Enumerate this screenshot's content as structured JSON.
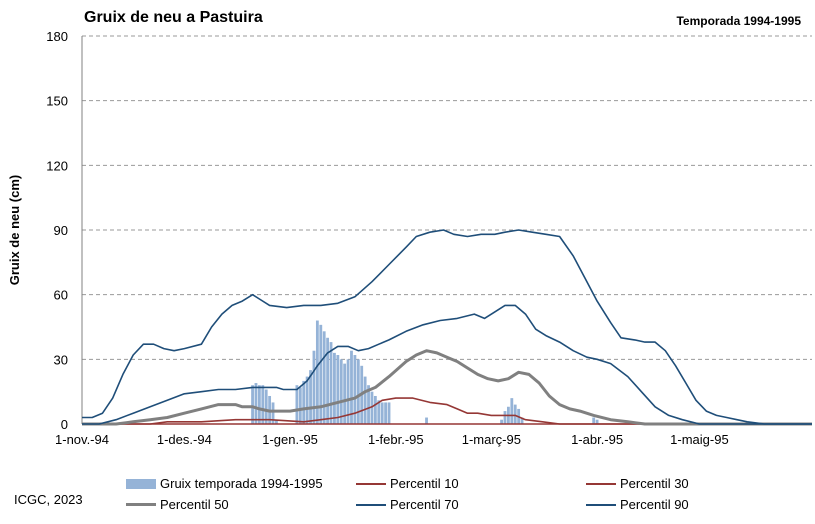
{
  "title": "Gruix de neu a Pastuira",
  "subtitle": "Temporada 1994-1995",
  "credit": "ICGC, 2023",
  "colors": {
    "bars": "#95b3d7",
    "p10": "#953735",
    "p30": "#953735",
    "p50": "#808080",
    "p70": "#1f4e79",
    "p90": "#1f4e79",
    "grid": "#9a9a9a"
  },
  "chart_data": {
    "type": "bar",
    "ylabel": "Gruix de neu (cm)",
    "xlabel": "",
    "ylim": [
      0,
      180
    ],
    "yticks": [
      0,
      30,
      60,
      90,
      120,
      150,
      180
    ],
    "x_range_days": [
      0,
      214
    ],
    "x_ticks": [
      {
        "day": 0,
        "label": "1-nov.-94"
      },
      {
        "day": 30,
        "label": "1-des.-94"
      },
      {
        "day": 61,
        "label": "1-gen.-95"
      },
      {
        "day": 92,
        "label": "1-febr.-95"
      },
      {
        "day": 120,
        "label": "1-març-95"
      },
      {
        "day": 151,
        "label": "1-abr.-95"
      },
      {
        "day": 181,
        "label": "1-maig-95"
      }
    ],
    "grid": true,
    "legend_position": "bottom",
    "bar_series": {
      "name": "Gruix temporada 1994-1995",
      "points": [
        [
          50,
          18
        ],
        [
          51,
          19
        ],
        [
          52,
          18
        ],
        [
          53,
          18
        ],
        [
          54,
          16
        ],
        [
          55,
          13
        ],
        [
          56,
          10
        ],
        [
          57,
          2
        ],
        [
          63,
          18
        ],
        [
          64,
          17
        ],
        [
          65,
          20
        ],
        [
          66,
          22
        ],
        [
          67,
          25
        ],
        [
          68,
          34
        ],
        [
          69,
          48
        ],
        [
          70,
          46
        ],
        [
          71,
          43
        ],
        [
          72,
          40
        ],
        [
          73,
          38
        ],
        [
          74,
          33
        ],
        [
          75,
          32
        ],
        [
          76,
          30
        ],
        [
          77,
          28
        ],
        [
          78,
          30
        ],
        [
          79,
          34
        ],
        [
          80,
          32
        ],
        [
          81,
          30
        ],
        [
          82,
          27
        ],
        [
          83,
          22
        ],
        [
          84,
          18
        ],
        [
          85,
          15
        ],
        [
          86,
          13
        ],
        [
          87,
          11
        ],
        [
          88,
          10
        ],
        [
          89,
          10
        ],
        [
          90,
          10
        ],
        [
          101,
          3
        ],
        [
          123,
          2
        ],
        [
          124,
          6
        ],
        [
          125,
          8
        ],
        [
          126,
          12
        ],
        [
          127,
          9
        ],
        [
          128,
          7
        ],
        [
          129,
          3
        ],
        [
          150,
          3
        ],
        [
          151,
          2
        ]
      ]
    },
    "series": [
      {
        "name": "Percentil 10",
        "points": [
          [
            0,
            0
          ],
          [
            214,
            0
          ]
        ]
      },
      {
        "name": "Percentil 30",
        "points": [
          [
            0,
            0
          ],
          [
            20,
            0
          ],
          [
            25,
            1
          ],
          [
            35,
            1
          ],
          [
            45,
            2
          ],
          [
            55,
            2
          ],
          [
            65,
            1
          ],
          [
            70,
            2
          ],
          [
            75,
            3
          ],
          [
            80,
            5
          ],
          [
            85,
            8
          ],
          [
            88,
            11
          ],
          [
            92,
            12
          ],
          [
            97,
            12
          ],
          [
            102,
            10
          ],
          [
            107,
            9
          ],
          [
            110,
            7
          ],
          [
            113,
            5
          ],
          [
            116,
            5
          ],
          [
            120,
            4
          ],
          [
            124,
            4
          ],
          [
            127,
            4
          ],
          [
            130,
            2
          ],
          [
            135,
            1
          ],
          [
            140,
            0
          ],
          [
            214,
            0
          ]
        ]
      },
      {
        "name": "Percentil 50",
        "points": [
          [
            0,
            0
          ],
          [
            10,
            0
          ],
          [
            15,
            1
          ],
          [
            20,
            2
          ],
          [
            25,
            3
          ],
          [
            30,
            5
          ],
          [
            35,
            7
          ],
          [
            40,
            9
          ],
          [
            45,
            9
          ],
          [
            47,
            8
          ],
          [
            50,
            8
          ],
          [
            52,
            7
          ],
          [
            55,
            6
          ],
          [
            58,
            6
          ],
          [
            61,
            6
          ],
          [
            65,
            7
          ],
          [
            70,
            8
          ],
          [
            75,
            10
          ],
          [
            80,
            12
          ],
          [
            83,
            15
          ],
          [
            86,
            17
          ],
          [
            90,
            22
          ],
          [
            95,
            29
          ],
          [
            98,
            32
          ],
          [
            101,
            34
          ],
          [
            104,
            33
          ],
          [
            107,
            31
          ],
          [
            110,
            29
          ],
          [
            113,
            26
          ],
          [
            116,
            23
          ],
          [
            119,
            21
          ],
          [
            122,
            20
          ],
          [
            125,
            21
          ],
          [
            128,
            24
          ],
          [
            131,
            23
          ],
          [
            134,
            19
          ],
          [
            137,
            13
          ],
          [
            140,
            9
          ],
          [
            143,
            7
          ],
          [
            146,
            6
          ],
          [
            150,
            4
          ],
          [
            155,
            2
          ],
          [
            160,
            1
          ],
          [
            165,
            0
          ],
          [
            214,
            0
          ]
        ]
      },
      {
        "name": "Percentil 70",
        "points": [
          [
            0,
            0
          ],
          [
            5,
            0
          ],
          [
            10,
            2
          ],
          [
            15,
            5
          ],
          [
            20,
            8
          ],
          [
            25,
            11
          ],
          [
            30,
            14
          ],
          [
            35,
            15
          ],
          [
            40,
            16
          ],
          [
            45,
            16
          ],
          [
            50,
            17
          ],
          [
            55,
            17
          ],
          [
            57,
            17
          ],
          [
            59,
            16
          ],
          [
            63,
            16
          ],
          [
            66,
            20
          ],
          [
            69,
            27
          ],
          [
            72,
            33
          ],
          [
            75,
            36
          ],
          [
            78,
            36
          ],
          [
            81,
            34
          ],
          [
            84,
            35
          ],
          [
            87,
            37
          ],
          [
            90,
            39
          ],
          [
            95,
            43
          ],
          [
            100,
            46
          ],
          [
            105,
            48
          ],
          [
            110,
            49
          ],
          [
            115,
            51
          ],
          [
            118,
            49
          ],
          [
            121,
            52
          ],
          [
            124,
            55
          ],
          [
            127,
            55
          ],
          [
            130,
            51
          ],
          [
            133,
            44
          ],
          [
            136,
            41
          ],
          [
            140,
            38
          ],
          [
            144,
            34
          ],
          [
            148,
            31
          ],
          [
            151,
            30
          ],
          [
            155,
            28
          ],
          [
            160,
            22
          ],
          [
            164,
            15
          ],
          [
            168,
            8
          ],
          [
            172,
            4
          ],
          [
            176,
            2
          ],
          [
            181,
            0
          ],
          [
            214,
            0
          ]
        ]
      },
      {
        "name": "Percentil 90",
        "points": [
          [
            0,
            3
          ],
          [
            3,
            3
          ],
          [
            6,
            5
          ],
          [
            9,
            12
          ],
          [
            12,
            23
          ],
          [
            15,
            32
          ],
          [
            18,
            37
          ],
          [
            21,
            37
          ],
          [
            24,
            35
          ],
          [
            27,
            34
          ],
          [
            30,
            35
          ],
          [
            35,
            37
          ],
          [
            38,
            45
          ],
          [
            41,
            51
          ],
          [
            44,
            55
          ],
          [
            47,
            57
          ],
          [
            50,
            60
          ],
          [
            52,
            58
          ],
          [
            55,
            55
          ],
          [
            60,
            54
          ],
          [
            65,
            55
          ],
          [
            70,
            55
          ],
          [
            75,
            56
          ],
          [
            80,
            59
          ],
          [
            85,
            66
          ],
          [
            90,
            74
          ],
          [
            95,
            82
          ],
          [
            98,
            87
          ],
          [
            102,
            89
          ],
          [
            106,
            90
          ],
          [
            109,
            88
          ],
          [
            113,
            87
          ],
          [
            117,
            88
          ],
          [
            121,
            88
          ],
          [
            124,
            89
          ],
          [
            128,
            90
          ],
          [
            132,
            89
          ],
          [
            136,
            88
          ],
          [
            140,
            87
          ],
          [
            144,
            78
          ],
          [
            148,
            66
          ],
          [
            151,
            57
          ],
          [
            155,
            47
          ],
          [
            158,
            40
          ],
          [
            162,
            39
          ],
          [
            165,
            38
          ],
          [
            168,
            38
          ],
          [
            171,
            34
          ],
          [
            174,
            27
          ],
          [
            177,
            19
          ],
          [
            180,
            11
          ],
          [
            183,
            6
          ],
          [
            186,
            4
          ],
          [
            189,
            3
          ],
          [
            192,
            2
          ],
          [
            195,
            1
          ],
          [
            200,
            0
          ],
          [
            214,
            0
          ]
        ]
      }
    ]
  },
  "legend": [
    {
      "key": "bars",
      "label": "Gruix temporada 1994-1995",
      "kind": "bar"
    },
    {
      "key": "p10",
      "label": "Percentil 10",
      "kind": "line"
    },
    {
      "key": "p30",
      "label": "Percentil 30",
      "kind": "line"
    },
    {
      "key": "p50",
      "label": "Percentil 50",
      "kind": "thick"
    },
    {
      "key": "p70",
      "label": "Percentil 70",
      "kind": "line"
    },
    {
      "key": "p90",
      "label": "Percentil 90",
      "kind": "line"
    }
  ]
}
